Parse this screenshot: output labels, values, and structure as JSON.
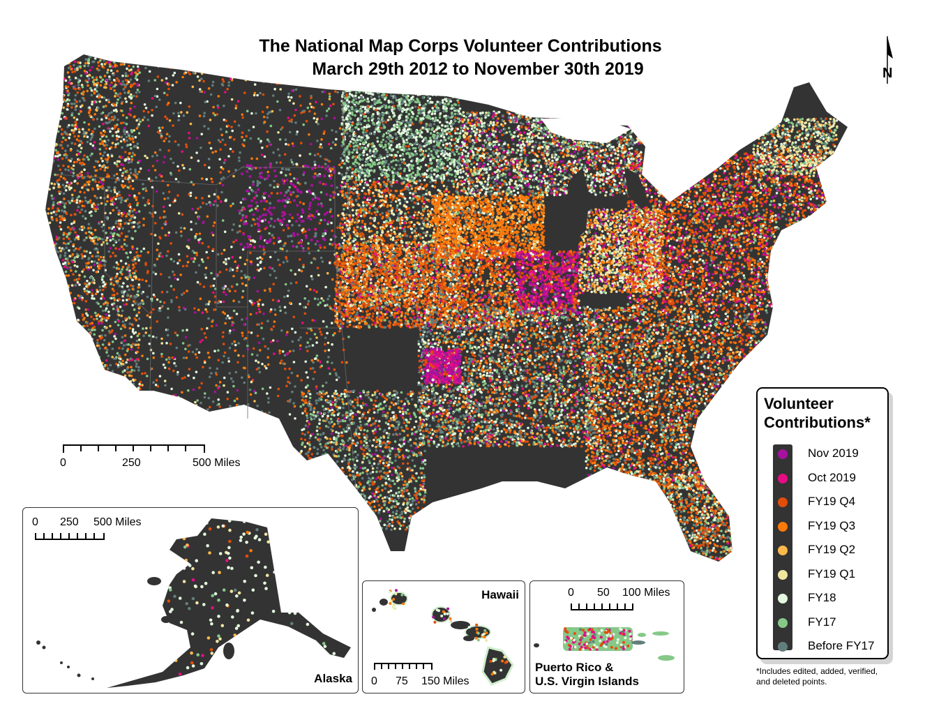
{
  "title": {
    "line1": "The National Map Corps Volunteer Contributions",
    "line2": "March 29th 2012 to November 30th 2019"
  },
  "north_arrow": {
    "label": "N"
  },
  "main_scale": {
    "labels": [
      "0",
      "250",
      "500 Miles"
    ]
  },
  "insets": {
    "alaska": {
      "name": "Alaska",
      "scale_labels": [
        "0",
        "250",
        "500 Miles"
      ]
    },
    "hawaii": {
      "name": "Hawaii",
      "scale_labels": [
        "0",
        "75",
        "150 Miles"
      ]
    },
    "puerto_rico": {
      "name_line1": "Puerto Rico &",
      "name_line2": "U.S. Virgin Islands",
      "scale_labels": [
        "0",
        "50",
        "100 Miles"
      ]
    }
  },
  "legend": {
    "title_line1": "Volunteer",
    "title_line2": "Contributions*",
    "items": [
      {
        "label": "Nov 2019",
        "color": "#a8119f"
      },
      {
        "label": "Oct 2019",
        "color": "#e60d84"
      },
      {
        "label": "FY19 Q4",
        "color": "#e24e0a"
      },
      {
        "label": "FY19 Q3",
        "color": "#fb7a0a"
      },
      {
        "label": "FY19 Q2",
        "color": "#fdb94c"
      },
      {
        "label": "FY19 Q1",
        "color": "#f0e6a0"
      },
      {
        "label": "FY18",
        "color": "#e3f8df"
      },
      {
        "label": "FY17",
        "color": "#86c888"
      },
      {
        "label": "Before FY17",
        "color": "#627e7c"
      }
    ]
  },
  "footnote": {
    "line1": "*Includes edited, added, verified,",
    "line2": "and deleted points."
  },
  "colors": {
    "land": "#333333",
    "state_lines": "#6a6a6a"
  }
}
